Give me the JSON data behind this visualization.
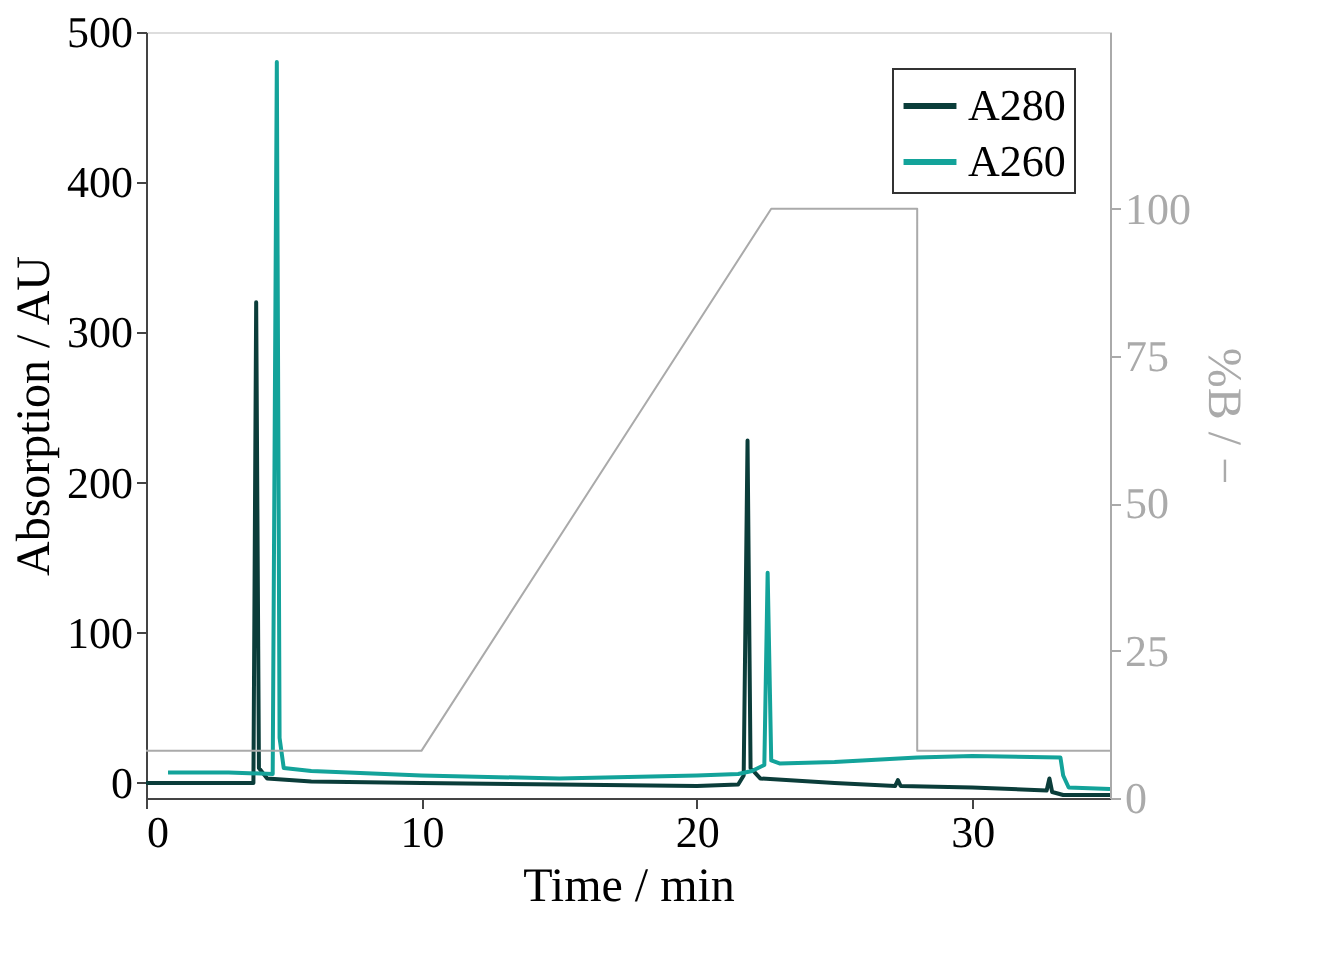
{
  "chart_data": {
    "type": "line",
    "xlabel": "Time / min",
    "ylabel": "Absorption / AU",
    "y2label": "%B / −",
    "xlim": [
      0,
      35
    ],
    "xticks": [
      0,
      10,
      20,
      30
    ],
    "ylim": [
      -10,
      500
    ],
    "yticks": [
      0,
      100,
      200,
      300,
      400,
      500
    ],
    "y2lim": [
      0,
      130
    ],
    "y2ticks": [
      0,
      25,
      50,
      75,
      100
    ],
    "grid": false,
    "legend": "top right",
    "marker": "none",
    "line_style": "solid",
    "series": [
      {
        "name": "A280",
        "color": "#0b3d3a",
        "x": [
          0,
          3.9,
          4.0,
          4.1,
          4.4,
          6,
          10,
          15,
          20,
          21.5,
          21.7,
          21.84,
          21.95,
          22.3,
          25,
          27.2,
          27.3,
          27.4,
          30,
          32.7,
          32.8,
          32.9,
          33.3,
          35
        ],
        "values": [
          0,
          0,
          320,
          10,
          3,
          1,
          0,
          -1,
          -2,
          -1,
          5,
          228,
          10,
          3,
          0,
          -2,
          2,
          -2,
          -3,
          -5,
          3,
          -6,
          -8,
          -8
        ]
      },
      {
        "name": "A260",
        "color": "#13a39a",
        "x": [
          0.8,
          3,
          4.6,
          4.75,
          4.85,
          5.0,
          6,
          10,
          15,
          20,
          21.5,
          22.0,
          22.45,
          22.57,
          22.7,
          23,
          25,
          27,
          28,
          30,
          33.2,
          33.3,
          33.5,
          35
        ],
        "values": [
          7,
          7,
          6,
          480,
          30,
          10,
          8,
          5,
          3,
          5,
          6,
          8,
          12,
          140,
          15,
          13,
          14,
          16,
          17,
          18,
          17,
          5,
          -3,
          -4
        ]
      },
      {
        "color": "#aaaaaa",
        "axis": "y2",
        "x": [
          0,
          10,
          22.7,
          28,
          28,
          35
        ],
        "values": [
          8,
          8,
          100,
          100,
          8,
          8
        ]
      }
    ]
  }
}
